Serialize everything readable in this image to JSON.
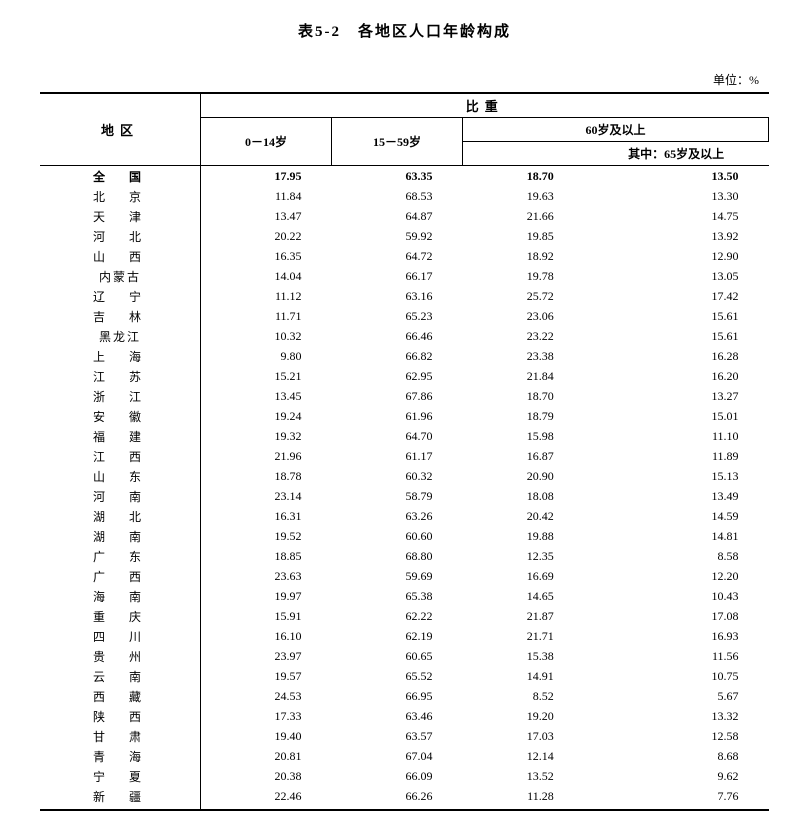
{
  "title": "表5-2　各地区人口年龄构成",
  "unit": "单位：%",
  "header": {
    "region": "地区",
    "ratio": "比重",
    "col0_14": "0－14岁",
    "col15_59": "15－59岁",
    "col60": "60岁及以上",
    "col65": "其中：65岁及以上"
  },
  "rows": [
    {
      "region": "全　国",
      "a": "17.95",
      "b": "63.35",
      "c": "18.70",
      "d": "13.50",
      "bold": true,
      "narrow": false
    },
    {
      "region": "北　京",
      "a": "11.84",
      "b": "68.53",
      "c": "19.63",
      "d": "13.30"
    },
    {
      "region": "天　津",
      "a": "13.47",
      "b": "64.87",
      "c": "21.66",
      "d": "14.75"
    },
    {
      "region": "河　北",
      "a": "20.22",
      "b": "59.92",
      "c": "19.85",
      "d": "13.92"
    },
    {
      "region": "山　西",
      "a": "16.35",
      "b": "64.72",
      "c": "18.92",
      "d": "12.90"
    },
    {
      "region": "内蒙古",
      "a": "14.04",
      "b": "66.17",
      "c": "19.78",
      "d": "13.05",
      "narrow": true
    },
    {
      "region": "辽　宁",
      "a": "11.12",
      "b": "63.16",
      "c": "25.72",
      "d": "17.42"
    },
    {
      "region": "吉　林",
      "a": "11.71",
      "b": "65.23",
      "c": "23.06",
      "d": "15.61"
    },
    {
      "region": "黑龙江",
      "a": "10.32",
      "b": "66.46",
      "c": "23.22",
      "d": "15.61",
      "narrow": true
    },
    {
      "region": "上　海",
      "a": "9.80",
      "b": "66.82",
      "c": "23.38",
      "d": "16.28"
    },
    {
      "region": "江　苏",
      "a": "15.21",
      "b": "62.95",
      "c": "21.84",
      "d": "16.20"
    },
    {
      "region": "浙　江",
      "a": "13.45",
      "b": "67.86",
      "c": "18.70",
      "d": "13.27"
    },
    {
      "region": "安　徽",
      "a": "19.24",
      "b": "61.96",
      "c": "18.79",
      "d": "15.01"
    },
    {
      "region": "福　建",
      "a": "19.32",
      "b": "64.70",
      "c": "15.98",
      "d": "11.10"
    },
    {
      "region": "江　西",
      "a": "21.96",
      "b": "61.17",
      "c": "16.87",
      "d": "11.89"
    },
    {
      "region": "山　东",
      "a": "18.78",
      "b": "60.32",
      "c": "20.90",
      "d": "15.13"
    },
    {
      "region": "河　南",
      "a": "23.14",
      "b": "58.79",
      "c": "18.08",
      "d": "13.49"
    },
    {
      "region": "湖　北",
      "a": "16.31",
      "b": "63.26",
      "c": "20.42",
      "d": "14.59"
    },
    {
      "region": "湖　南",
      "a": "19.52",
      "b": "60.60",
      "c": "19.88",
      "d": "14.81"
    },
    {
      "region": "广　东",
      "a": "18.85",
      "b": "68.80",
      "c": "12.35",
      "d": "8.58"
    },
    {
      "region": "广　西",
      "a": "23.63",
      "b": "59.69",
      "c": "16.69",
      "d": "12.20"
    },
    {
      "region": "海　南",
      "a": "19.97",
      "b": "65.38",
      "c": "14.65",
      "d": "10.43"
    },
    {
      "region": "重　庆",
      "a": "15.91",
      "b": "62.22",
      "c": "21.87",
      "d": "17.08"
    },
    {
      "region": "四　川",
      "a": "16.10",
      "b": "62.19",
      "c": "21.71",
      "d": "16.93"
    },
    {
      "region": "贵　州",
      "a": "23.97",
      "b": "60.65",
      "c": "15.38",
      "d": "11.56"
    },
    {
      "region": "云　南",
      "a": "19.57",
      "b": "65.52",
      "c": "14.91",
      "d": "10.75"
    },
    {
      "region": "西　藏",
      "a": "24.53",
      "b": "66.95",
      "c": "8.52",
      "d": "5.67"
    },
    {
      "region": "陕　西",
      "a": "17.33",
      "b": "63.46",
      "c": "19.20",
      "d": "13.32"
    },
    {
      "region": "甘　肃",
      "a": "19.40",
      "b": "63.57",
      "c": "17.03",
      "d": "12.58"
    },
    {
      "region": "青　海",
      "a": "20.81",
      "b": "67.04",
      "c": "12.14",
      "d": "8.68"
    },
    {
      "region": "宁　夏",
      "a": "20.38",
      "b": "66.09",
      "c": "13.52",
      "d": "9.62"
    },
    {
      "region": "新　疆",
      "a": "22.46",
      "b": "66.26",
      "c": "11.28",
      "d": "7.76"
    }
  ]
}
